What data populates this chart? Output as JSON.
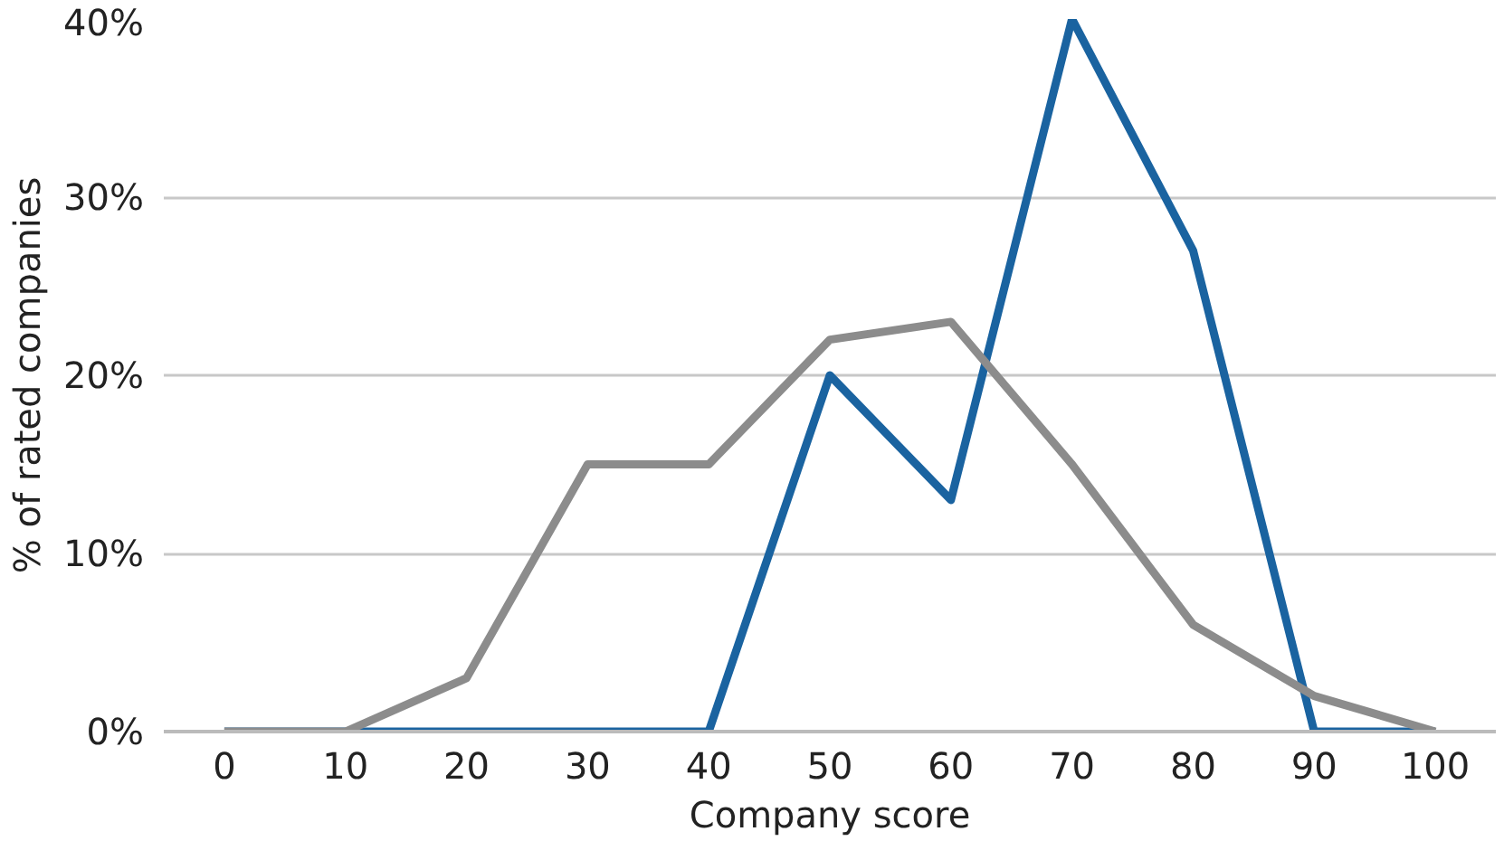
{
  "chart_data": {
    "type": "line",
    "xlabel": "Company score",
    "ylabel": "% of rated companies",
    "x": [
      0,
      10,
      20,
      30,
      40,
      50,
      60,
      70,
      80,
      90,
      100
    ],
    "series": [
      {
        "color": "#1a63a0",
        "values": [
          0,
          0,
          0,
          0,
          0,
          20,
          13,
          40,
          27,
          0,
          0
        ]
      },
      {
        "color": "#8c8c8c",
        "values": [
          0,
          0,
          3,
          15,
          15,
          22,
          23,
          15,
          6,
          2,
          0
        ]
      }
    ],
    "xlim": [
      -5,
      105
    ],
    "xticks": [
      0,
      10,
      20,
      30,
      40,
      50,
      60,
      70,
      80,
      90,
      100
    ],
    "ylim": [
      0,
      40
    ],
    "yticks": [
      {
        "value": 0,
        "label": "0%"
      },
      {
        "value": 10,
        "label": "10%"
      },
      {
        "value": 20,
        "label": "20%"
      },
      {
        "value": 30,
        "label": "30%"
      },
      {
        "value": 40,
        "label": "40%"
      }
    ],
    "grid": "y",
    "marker": "none",
    "line_style": "solid"
  }
}
